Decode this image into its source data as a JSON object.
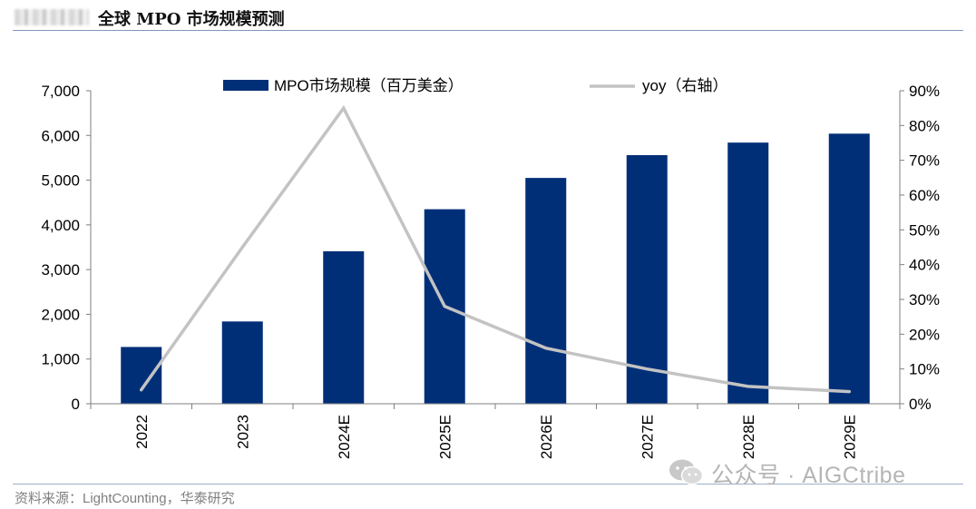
{
  "title": "全球 MPO 市场规模预测",
  "source": "资料来源：LightCounting，华泰研究",
  "watermark": "公众号 · AIGCtribe",
  "colors": {
    "bar": "#002f78",
    "line": "#c3c3c3",
    "axis": "#7f7f7f"
  },
  "chart_data": {
    "type": "bar",
    "categories": [
      "2022",
      "2023",
      "2024E",
      "2025E",
      "2026E",
      "2027E",
      "2028E",
      "2029E"
    ],
    "series": [
      {
        "name": "MPO市场规模（百万美金）",
        "type": "bar",
        "axis": "left",
        "values": [
          1270,
          1840,
          3410,
          4350,
          5050,
          5560,
          5840,
          6040
        ]
      },
      {
        "name": "yoy（右轴）",
        "type": "line",
        "axis": "right",
        "values": [
          0.04,
          0.45,
          0.85,
          0.28,
          0.16,
          0.1,
          0.05,
          0.035
        ]
      }
    ],
    "left_axis": {
      "min": 0,
      "max": 7000,
      "step": 1000,
      "tick_labels": [
        "0",
        "1,000",
        "2,000",
        "3,000",
        "4,000",
        "5,000",
        "6,000",
        "7,000"
      ]
    },
    "right_axis": {
      "min": 0,
      "max": 0.9,
      "step": 0.1,
      "tick_labels": [
        "0%",
        "10%",
        "20%",
        "30%",
        "40%",
        "50%",
        "60%",
        "70%",
        "80%",
        "90%"
      ]
    },
    "legend_position": "top"
  }
}
